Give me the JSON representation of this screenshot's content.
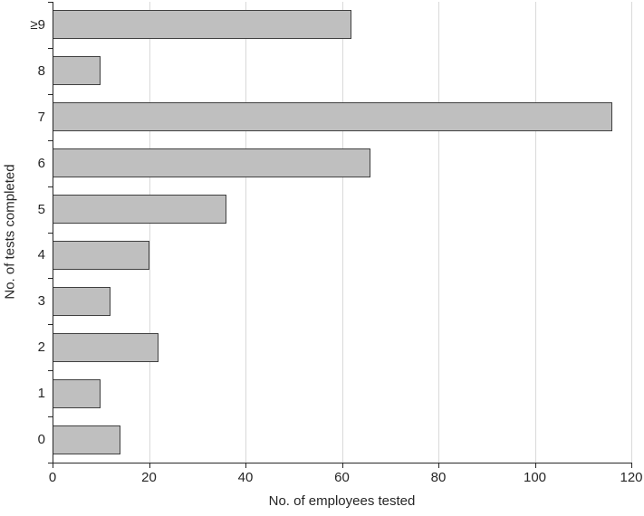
{
  "chart_data": {
    "type": "bar",
    "orientation": "horizontal",
    "title": "",
    "xlabel": "No. of employees tested",
    "ylabel": "No. of tests completed",
    "categories": [
      "≥9",
      "8",
      "7",
      "6",
      "5",
      "4",
      "3",
      "2",
      "1",
      "0"
    ],
    "values": [
      62,
      10,
      116,
      66,
      36,
      20,
      12,
      22,
      10,
      14
    ],
    "xlim": [
      0,
      120
    ],
    "xticks": [
      0,
      20,
      40,
      60,
      80,
      100,
      120
    ],
    "grid": true,
    "legend": "none"
  },
  "colors": {
    "bar_fill": "#bfbfbf",
    "bar_border": "#404040",
    "gridline": "#d9d9d9",
    "axis_line": "#262626",
    "text": "#262626",
    "background": "#ffffff"
  }
}
